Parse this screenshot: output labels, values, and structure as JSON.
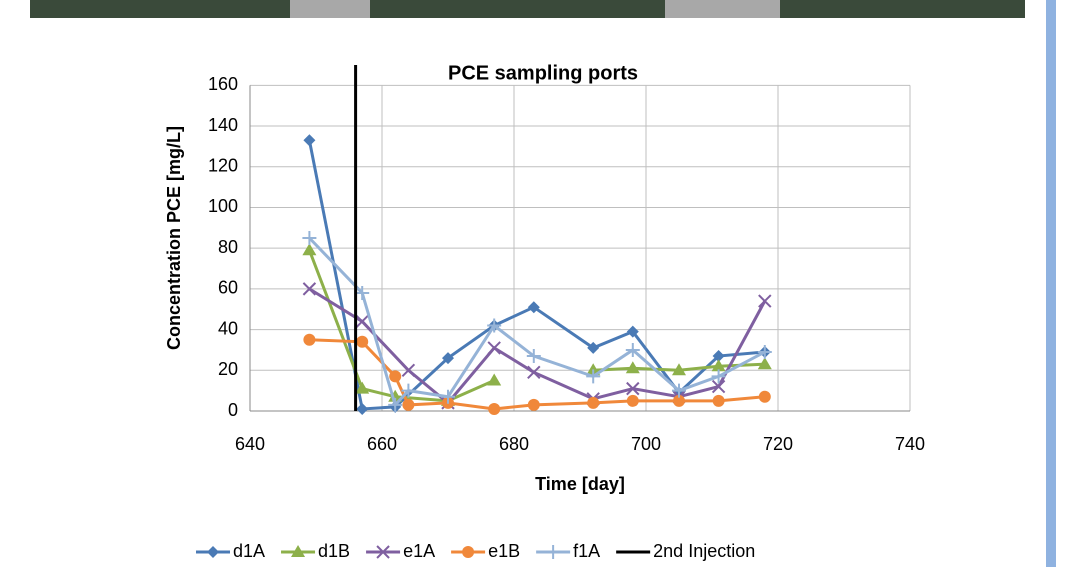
{
  "chart_data": {
    "type": "line",
    "title": "PCE  sampling ports",
    "x_label": "Time [day]",
    "y_label": "Concentration PCE [mg/L]",
    "xlim": [
      640,
      740
    ],
    "xticks": [
      640,
      660,
      680,
      700,
      720,
      740
    ],
    "ylim": [
      0,
      170
    ],
    "yticks": [
      0,
      20,
      40,
      60,
      80,
      100,
      120,
      140,
      160
    ],
    "grid": true,
    "legend": "bottom",
    "series": [
      {
        "name": "d1A",
        "color": "#4a7ab5",
        "marker": "diamond",
        "x": [
          649,
          657,
          662,
          670,
          677,
          683,
          692,
          698,
          705,
          711,
          718
        ],
        "values": [
          133,
          1,
          2,
          26,
          42,
          51,
          31,
          39,
          9,
          27,
          29
        ]
      },
      {
        "name": "d1B",
        "color": "#8db04a",
        "marker": "triangle",
        "x": [
          649,
          657,
          662,
          670,
          677,
          683,
          692,
          698,
          705,
          711,
          718
        ],
        "values": [
          79,
          11,
          7,
          5,
          15,
          null,
          20,
          21,
          20,
          22,
          23
        ]
      },
      {
        "name": "e1A",
        "color": "#7f5fa0",
        "marker": "cross",
        "x": [
          649,
          657,
          664,
          670,
          677,
          683,
          692,
          698,
          705,
          711,
          718
        ],
        "values": [
          60,
          44,
          20,
          4,
          31,
          19,
          6,
          11,
          7,
          12,
          54
        ]
      },
      {
        "name": "e1B",
        "color": "#f0883a",
        "marker": "circle",
        "x": [
          649,
          657,
          662,
          664,
          670,
          677,
          683,
          692,
          698,
          705,
          711,
          718
        ],
        "values": [
          35,
          34,
          17,
          3,
          4,
          1,
          3,
          4,
          5,
          5,
          5,
          7
        ]
      },
      {
        "name": "f1A",
        "color": "#95b3d7",
        "marker": "plus",
        "x": [
          649,
          657,
          662,
          664,
          670,
          677,
          683,
          692,
          698,
          705,
          711,
          718
        ],
        "values": [
          85,
          58,
          3,
          10,
          7,
          42,
          27,
          17,
          30,
          10,
          17,
          29
        ]
      },
      {
        "name": "2nd Injection",
        "color": "#000000",
        "marker": "none",
        "x": [
          656,
          656
        ],
        "values": [
          0,
          170
        ]
      }
    ]
  }
}
